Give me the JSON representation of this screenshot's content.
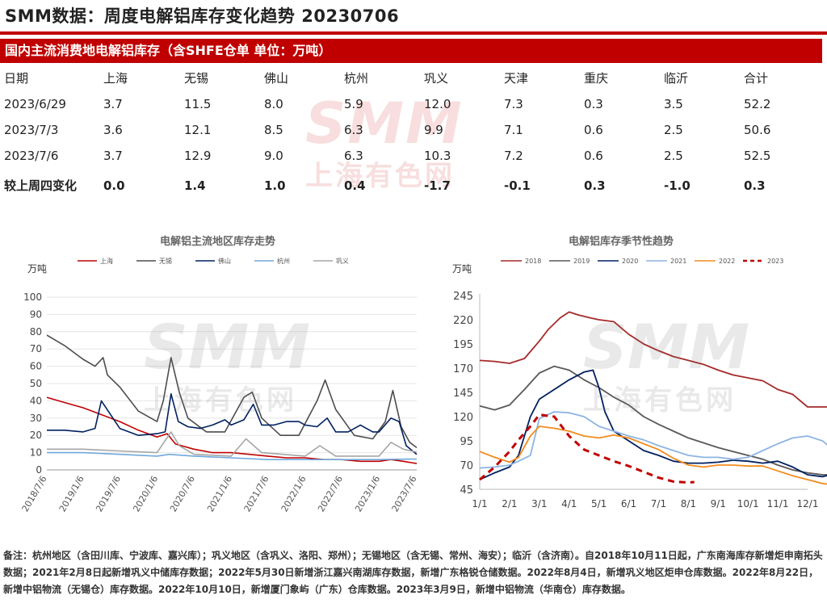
{
  "header": {
    "title": "SMM数据：周度电解铝库存变化趋势 20230706",
    "banner": "国内主流消费地电解铝库存（含SHFE仓单 单位：万吨）"
  },
  "table": {
    "columns": [
      "日期",
      "上海",
      "无锡",
      "佛山",
      "杭州",
      "巩义",
      "天津",
      "重庆",
      "临沂",
      "合计"
    ],
    "rows": [
      [
        "2023/6/29",
        "3.7",
        "11.5",
        "8.0",
        "5.9",
        "12.0",
        "7.3",
        "0.3",
        "3.5",
        "52.2"
      ],
      [
        "2023/7/3",
        "3.6",
        "12.1",
        "8.5",
        "6.3",
        "9.9",
        "7.1",
        "0.6",
        "2.5",
        "50.6"
      ],
      [
        "2023/7/6",
        "3.7",
        "12.9",
        "9.0",
        "6.3",
        "10.3",
        "7.2",
        "0.6",
        "2.5",
        "52.5"
      ]
    ],
    "change_row": [
      "较上周四变化",
      "0.0",
      "1.4",
      "1.0",
      "0.4",
      "-1.7",
      "-0.1",
      "0.3",
      "-1.0",
      "0.3"
    ]
  },
  "watermark": {
    "logo": "SMM",
    "sub": "上海有色网"
  },
  "colors": {
    "brand_red": "#c00000"
  },
  "chart_data": [
    {
      "type": "line",
      "title": "电解铝主流地区库存走势",
      "ylabel": "万吨",
      "ylim": [
        0,
        100
      ],
      "yticks": [
        0,
        10,
        20,
        30,
        40,
        50,
        60,
        70,
        80,
        90,
        100
      ],
      "xlim": [
        "2018/7/6",
        "2023/7/6"
      ],
      "xticks": [
        "2018/7/6",
        "2019/1/6",
        "2019/7/6",
        "2020/1/6",
        "2020/7/6",
        "2021/1/6",
        "2021/7/6",
        "2022/1/6",
        "2022/7/6",
        "2023/1/6",
        "2023/7/6"
      ],
      "legend_position": "top",
      "series": [
        {
          "name": "上海",
          "color": "#c00000",
          "x": [
            "2018/7/6",
            "2018/10/1",
            "2019/1/1",
            "2019/4/1",
            "2019/7/1",
            "2019/10/1",
            "2020/1/1",
            "2020/2/20",
            "2020/4/1",
            "2020/7/1",
            "2020/10/1",
            "2021/1/1",
            "2021/4/1",
            "2021/7/1",
            "2021/10/1",
            "2022/1/1",
            "2022/4/1",
            "2022/7/1",
            "2022/10/1",
            "2023/1/1",
            "2023/3/1",
            "2023/5/1",
            "2023/7/6"
          ],
          "y": [
            42,
            39,
            36,
            32,
            28,
            23,
            19,
            21,
            15,
            12,
            10,
            10,
            9,
            8,
            7,
            7,
            6,
            6,
            5,
            5,
            6,
            5,
            3.7
          ]
        },
        {
          "name": "无锡",
          "color": "#4d4d4d",
          "x": [
            "2018/7/6",
            "2018/10/1",
            "2019/1/1",
            "2019/3/1",
            "2019/4/10",
            "2019/5/1",
            "2019/7/1",
            "2019/10/1",
            "2020/1/1",
            "2020/2/1",
            "2020/3/10",
            "2020/4/20",
            "2020/6/1",
            "2020/9/1",
            "2020/12/1",
            "2021/3/5",
            "2021/4/15",
            "2021/6/1",
            "2021/9/1",
            "2021/12/1",
            "2022/3/1",
            "2022/4/10",
            "2022/6/1",
            "2022/9/1",
            "2022/12/1",
            "2023/2/1",
            "2023/3/10",
            "2023/4/20",
            "2023/6/1",
            "2023/7/6"
          ],
          "y": [
            78,
            72,
            64,
            60,
            65,
            55,
            48,
            34,
            28,
            40,
            65,
            45,
            30,
            22,
            22,
            42,
            45,
            30,
            20,
            20,
            40,
            52,
            35,
            20,
            18,
            28,
            46,
            25,
            16,
            12.9
          ]
        },
        {
          "name": "佛山",
          "color": "#002060",
          "x": [
            "2018/7/6",
            "2018/10/1",
            "2019/1/1",
            "2019/3/1",
            "2019/4/1",
            "2019/7/1",
            "2019/10/1",
            "2020/1/1",
            "2020/2/10",
            "2020/3/10",
            "2020/4/15",
            "2020/6/1",
            "2020/8/1",
            "2020/10/1",
            "2020/12/1",
            "2021/1/1",
            "2021/3/5",
            "2021/4/20",
            "2021/6/1",
            "2021/8/1",
            "2021/10/1",
            "2021/12/1",
            "2022/1/1",
            "2022/3/1",
            "2022/4/20",
            "2022/6/1",
            "2022/8/1",
            "2022/10/1",
            "2022/12/1",
            "2023/1/1",
            "2023/3/1",
            "2023/4/10",
            "2023/5/15",
            "2023/7/6"
          ],
          "y": [
            23,
            23,
            22,
            24,
            40,
            24,
            20,
            21,
            22,
            44,
            28,
            25,
            24,
            26,
            29,
            26,
            29,
            38,
            26,
            26,
            28,
            28,
            26,
            25,
            30,
            22,
            22,
            26,
            22,
            22,
            30,
            28,
            14,
            9
          ]
        },
        {
          "name": "杭州",
          "color": "#6fa8dc",
          "x": [
            "2018/7/6",
            "2019/1/1",
            "2019/7/1",
            "2020/1/1",
            "2020/3/1",
            "2020/7/1",
            "2021/1/1",
            "2021/7/1",
            "2022/1/1",
            "2022/7/1",
            "2023/1/1",
            "2023/7/6"
          ],
          "y": [
            10,
            10,
            9,
            8,
            9,
            8,
            7,
            6,
            6,
            6,
            6,
            6.3
          ]
        },
        {
          "name": "巩义",
          "color": "#a6a6a6",
          "x": [
            "2018/7/6",
            "2019/1/1",
            "2019/7/1",
            "2020/1/1",
            "2020/3/10",
            "2020/4/20",
            "2020/7/1",
            "2021/1/1",
            "2021/3/15",
            "2021/6/1",
            "2022/1/1",
            "2022/3/15",
            "2022/6/1",
            "2023/1/1",
            "2023/3/1",
            "2023/5/1",
            "2023/7/6"
          ],
          "y": [
            12,
            12,
            11,
            10,
            22,
            14,
            9,
            8,
            18,
            10,
            8,
            14,
            8,
            8,
            16,
            12,
            10.3
          ]
        }
      ]
    },
    {
      "type": "line",
      "title": "电解铝库存季节性趋势",
      "ylabel": "万吨",
      "ylim": [
        45,
        245
      ],
      "yticks": [
        45,
        70,
        95,
        120,
        145,
        170,
        195,
        220,
        245
      ],
      "categories": [
        "1/1",
        "2/1",
        "3/1",
        "4/1",
        "5/1",
        "6/1",
        "7/1",
        "8/1",
        "9/1",
        "10/1",
        "11/1",
        "12/1"
      ],
      "legend_position": "top",
      "series": [
        {
          "name": "2018",
          "color": "#a52a2a",
          "dash": false,
          "x": [
            0,
            0.5,
            1,
            1.5,
            2,
            2.3,
            2.7,
            3,
            3.3,
            3.7,
            4,
            4.5,
            5,
            5.5,
            6,
            6.5,
            7,
            7.5,
            8,
            8.5,
            9,
            9.5,
            10,
            10.5,
            11,
            11.5,
            12
          ],
          "y": [
            178,
            177,
            175,
            180,
            198,
            210,
            222,
            228,
            225,
            222,
            220,
            218,
            205,
            195,
            188,
            182,
            178,
            174,
            168,
            163,
            160,
            157,
            148,
            143,
            130,
            130,
            130
          ]
        },
        {
          "name": "2019",
          "color": "#595959",
          "dash": false,
          "x": [
            0,
            0.5,
            1,
            1.5,
            2,
            2.5,
            3,
            3.5,
            4,
            4.5,
            5,
            5.5,
            6,
            6.5,
            7,
            7.5,
            8,
            8.5,
            9,
            9.5,
            10,
            10.5,
            11,
            11.5,
            12
          ],
          "y": [
            131,
            127,
            132,
            148,
            165,
            172,
            168,
            158,
            150,
            140,
            132,
            120,
            112,
            105,
            98,
            93,
            88,
            84,
            80,
            76,
            70,
            65,
            62,
            60,
            60
          ]
        },
        {
          "name": "2020",
          "color": "#002060",
          "dash": false,
          "x": [
            0,
            0.5,
            1,
            1.3,
            1.7,
            2,
            2.5,
            3,
            3.5,
            3.8,
            4,
            4.2,
            4.5,
            5,
            5.5,
            6,
            6.5,
            7,
            7.5,
            8,
            8.5,
            9,
            9.5,
            10,
            10.5,
            11,
            11.5,
            12
          ],
          "y": [
            55,
            62,
            68,
            80,
            120,
            138,
            148,
            158,
            166,
            168,
            150,
            125,
            105,
            95,
            85,
            80,
            74,
            72,
            72,
            73,
            75,
            74,
            72,
            74,
            68,
            60,
            58,
            62
          ]
        },
        {
          "name": "2021",
          "color": "#8db4e2",
          "dash": false,
          "x": [
            0,
            0.5,
            1,
            1.3,
            1.7,
            2,
            2.5,
            3,
            3.5,
            4,
            4.5,
            5,
            5.5,
            6,
            6.5,
            7,
            7.5,
            8,
            8.5,
            9,
            9.5,
            10,
            10.5,
            11,
            11.5,
            12
          ],
          "y": [
            67,
            68,
            70,
            74,
            80,
            118,
            125,
            124,
            120,
            110,
            105,
            100,
            96,
            90,
            85,
            80,
            78,
            78,
            76,
            78,
            85,
            92,
            98,
            100,
            95,
            82
          ]
        },
        {
          "name": "2022",
          "color": "#f28c1e",
          "dash": false,
          "x": [
            0,
            0.5,
            1,
            1.3,
            1.7,
            2,
            2.5,
            3,
            3.5,
            4,
            4.5,
            5,
            5.5,
            6,
            6.5,
            7,
            7.5,
            8,
            8.5,
            9,
            9.5,
            10,
            10.5,
            11,
            11.5,
            12
          ],
          "y": [
            84,
            78,
            73,
            78,
            100,
            110,
            108,
            105,
            100,
            98,
            101,
            98,
            92,
            86,
            77,
            70,
            68,
            70,
            70,
            69,
            69,
            64,
            59,
            55,
            51,
            49
          ]
        },
        {
          "name": "2023",
          "color": "#c00000",
          "dash": true,
          "x": [
            0,
            0.5,
            1,
            1.3,
            1.7,
            2,
            2.5,
            3,
            3.5,
            4,
            4.5,
            5,
            5.5,
            6,
            6.5,
            7,
            7.2
          ],
          "y": [
            55,
            68,
            84,
            96,
            110,
            122,
            120,
            100,
            86,
            80,
            74,
            69,
            63,
            57,
            53,
            52,
            52.5
          ]
        }
      ]
    }
  ],
  "footnote": "备注：杭州地区（含田川库、宁波库、嘉兴库）；巩义地区（含巩义、洛阳、郑州）；无锡地区（含无锡、常州、海安）；临沂（含济南）。自2018年10月11日起，广东南海库存新增炬申南拓头数据；2021年2月8日起新增巩义中储库存数据；2022年5月30日新增浙江嘉兴南湖库存数据，新增广东格锐仓储数据。2022年8月4日，新增巩义地区炬申仓库数据。2022年8月22日，新增中铝物流（无锡仓）库存数据。2022年10月10日，新增厦门象屿（广东）仓库数据。2023年3月9日，新增中铝物流（华南仓）库存数据。"
}
